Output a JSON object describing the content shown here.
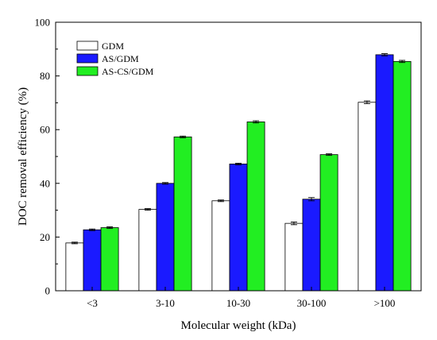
{
  "chart_data": {
    "type": "bar",
    "title": "",
    "xlabel": "Molecular weight (kDa)",
    "ylabel": "DOC removal efficiency (%)",
    "ylim": [
      0,
      100
    ],
    "yticks": [
      "0",
      "20",
      "40",
      "60",
      "80",
      "100"
    ],
    "categories": [
      "<3",
      "3-10",
      "10-30",
      "30-100",
      ">100"
    ],
    "legend_position": "top-left",
    "grid": false,
    "series": [
      {
        "name": "GDM",
        "color": "#ffffff",
        "values": [
          17.8,
          30.3,
          33.5,
          25.1,
          70.2
        ],
        "errors": [
          0.3,
          0.3,
          0.3,
          0.5,
          0.5
        ]
      },
      {
        "name": "AS/GDM",
        "color": "#1a1aff",
        "values": [
          22.7,
          40.0,
          47.2,
          34.1,
          87.9
        ],
        "errors": [
          0.3,
          0.3,
          0.3,
          0.6,
          0.4
        ]
      },
      {
        "name": "AS-CS/GDM",
        "color": "#22ee22",
        "values": [
          23.5,
          57.3,
          62.9,
          50.7,
          85.4
        ],
        "errors": [
          0.3,
          0.3,
          0.4,
          0.3,
          0.4
        ]
      }
    ]
  }
}
